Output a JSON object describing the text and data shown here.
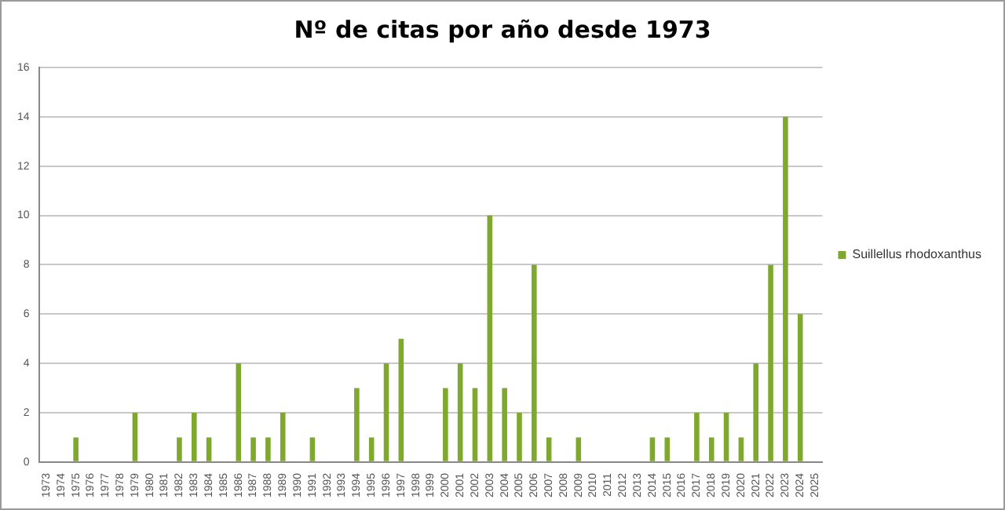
{
  "chart_data": {
    "type": "bar",
    "title": "Nº de citas por año desde 1973",
    "categories": [
      "1973",
      "1974",
      "1975",
      "1976",
      "1977",
      "1978",
      "1979",
      "1980",
      "1981",
      "1982",
      "1983",
      "1984",
      "1985",
      "1986",
      "1987",
      "1988",
      "1989",
      "1990",
      "1991",
      "1992",
      "1993",
      "1994",
      "1995",
      "1996",
      "1997",
      "1998",
      "1999",
      "2000",
      "2001",
      "2002",
      "2003",
      "2004",
      "2005",
      "2006",
      "2007",
      "2008",
      "2009",
      "2010",
      "2011",
      "2012",
      "2013",
      "2014",
      "2015",
      "2016",
      "2017",
      "2018",
      "2019",
      "2020",
      "2021",
      "2022",
      "2023",
      "2024",
      "2025"
    ],
    "series": [
      {
        "name": "Suillellus rhodoxanthus",
        "color": "#7fa82e",
        "values": [
          0,
          0,
          1,
          0,
          0,
          0,
          2,
          0,
          0,
          1,
          2,
          1,
          0,
          4,
          1,
          1,
          2,
          0,
          1,
          0,
          0,
          3,
          1,
          4,
          5,
          0,
          0,
          3,
          4,
          3,
          10,
          3,
          2,
          8,
          1,
          0,
          1,
          0,
          0,
          0,
          0,
          1,
          1,
          0,
          2,
          1,
          2,
          1,
          4,
          8,
          14,
          6,
          0
        ]
      }
    ],
    "ylim": [
      0,
      16
    ],
    "yticks": [
      0,
      2,
      4,
      6,
      8,
      10,
      12,
      14,
      16
    ],
    "grid": "y",
    "legend": "right"
  }
}
